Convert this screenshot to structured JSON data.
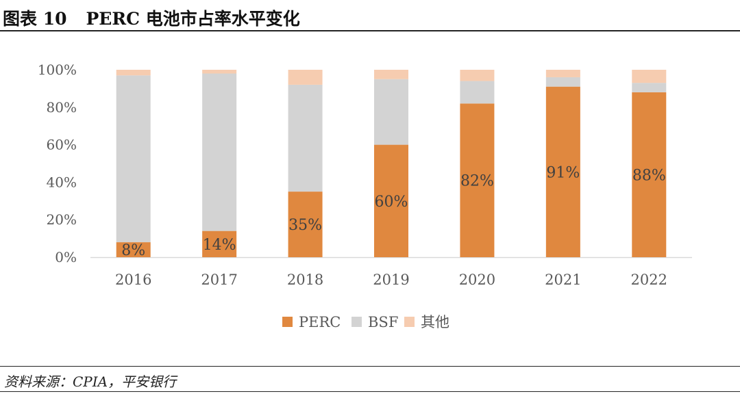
{
  "header": {
    "figure_label": "图表 10",
    "title": "PERC 电池市占率水平变化"
  },
  "footer": {
    "source": "资料来源：CPIA，平安银行"
  },
  "colors": {
    "PERC": "#E0883F",
    "BSF": "#D3D3D3",
    "other": "#F6CCB0"
  },
  "chart_data": {
    "type": "bar",
    "stacked": true,
    "categories": [
      "2016",
      "2017",
      "2018",
      "2019",
      "2020",
      "2021",
      "2022"
    ],
    "series": [
      {
        "name": "PERC",
        "values": [
          8,
          14,
          35,
          60,
          82,
          91,
          88
        ]
      },
      {
        "name": "BSF",
        "values": [
          89,
          84,
          57,
          35,
          12,
          5,
          5
        ]
      },
      {
        "name": "其他",
        "values": [
          3,
          2,
          8,
          5,
          6,
          4,
          7
        ]
      }
    ],
    "data_labels": [
      "8%",
      "14%",
      "35%",
      "60%",
      "82%",
      "91%",
      "88%"
    ],
    "yticks": [
      "0%",
      "20%",
      "40%",
      "60%",
      "80%",
      "100%"
    ],
    "ylim": [
      0,
      100
    ],
    "grid": false,
    "legend_position": "bottom"
  }
}
